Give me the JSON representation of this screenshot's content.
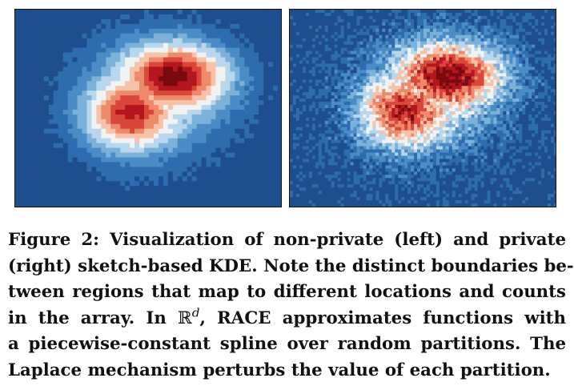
{
  "figure": {
    "left_panel": {
      "label": "non-private",
      "colormap": [
        "#1f4e8f",
        "#2d6cae",
        "#4a8dc6",
        "#7cb1d9",
        "#b9d7ec",
        "#f2f2f2",
        "#f7c3a8",
        "#ee8a6b",
        "#d9473a",
        "#b3161f",
        "#7a0a12"
      ]
    },
    "right_panel": {
      "label": "private",
      "colormap": [
        "#1f4e8f",
        "#2d6cae",
        "#4a8dc6",
        "#7cb1d9",
        "#b9d7ec",
        "#f2f2f2",
        "#f7c3a8",
        "#ee8a6b",
        "#d9473a",
        "#b3161f",
        "#7a0a12"
      ]
    }
  },
  "caption": {
    "line1": "Figure 2: Visualization of non-private (left) and private",
    "line2": "(right) sketch-based KDE. Note the distinct boundaries be-",
    "line3": "tween regions that map to different locations and counts",
    "line4_pre": "in the array. In",
    "line4_math_base": "ℝ",
    "line4_math_sup": "d",
    "line4_post": ", RACE approximates functions with",
    "line5": "a piecewise-constant spline over random partitions. The",
    "line6": "Laplace mechanism perturbs the value of each partition."
  }
}
